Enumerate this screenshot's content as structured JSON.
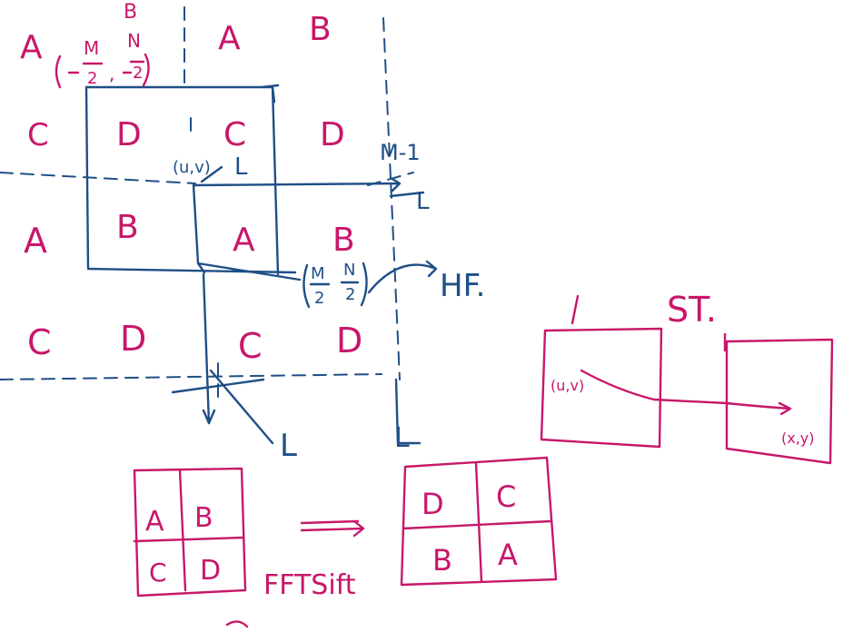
{
  "colors": {
    "ink_pink": "#c8176a",
    "ink_blue": "#1f4f86",
    "background": "#ffffff"
  },
  "periodic_grid": {
    "row1": [
      "A",
      "A",
      "B"
    ],
    "row1_top_mark": "B",
    "row2": [
      "C",
      "D",
      "C",
      "D"
    ],
    "row3": [
      "A",
      "B",
      "A",
      "B"
    ],
    "row4": [
      "C",
      "D",
      "C",
      "D"
    ]
  },
  "labels": {
    "corner_m": "M",
    "corner_n": "N",
    "corner_2a": "2",
    "corner_2b": "2",
    "origin": "(u,v)",
    "L_origin": "L",
    "M_minus_1": "M-1",
    "L_right": "L",
    "center_m": "M",
    "center_n": "N",
    "center_2a": "2",
    "center_2b": "2",
    "HF": "HF.",
    "L_bottom_left": "L",
    "L_bottom_right": "L",
    "ST": "ST."
  },
  "transform_boxes": {
    "uv": "(u,v)",
    "xy": "(x,y)"
  },
  "fftshift": {
    "before": [
      "A",
      "B",
      "C",
      "D"
    ],
    "after": [
      "D",
      "C",
      "B",
      "A"
    ],
    "label": "FFTSift"
  }
}
